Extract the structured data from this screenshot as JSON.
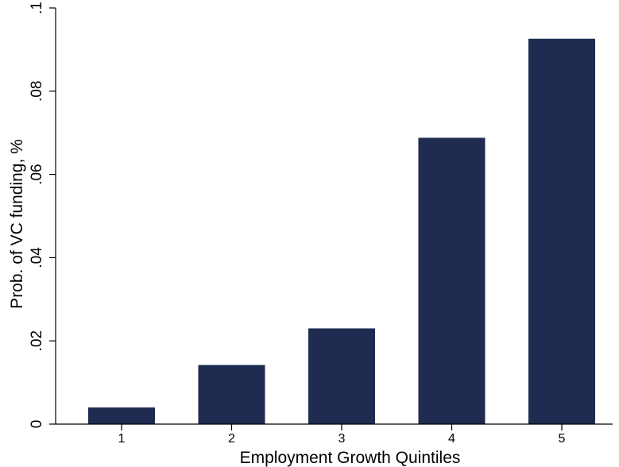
{
  "chart_data": {
    "type": "bar",
    "categories": [
      "1",
      "2",
      "3",
      "4",
      "5"
    ],
    "values": [
      0.004,
      0.0142,
      0.023,
      0.0688,
      0.0926
    ],
    "xlabel": "Employment Growth Quintiles",
    "ylabel": "Prob. of VC funding, %",
    "ylim": [
      0,
      0.1
    ],
    "yticks": [
      0,
      0.02,
      0.04,
      0.06,
      0.08,
      0.1
    ],
    "ytick_labels": [
      "0",
      ".02",
      ".04",
      ".06",
      ".08",
      ".1"
    ],
    "grid": false,
    "legend": "none",
    "bar_color": "#1f2b50"
  }
}
